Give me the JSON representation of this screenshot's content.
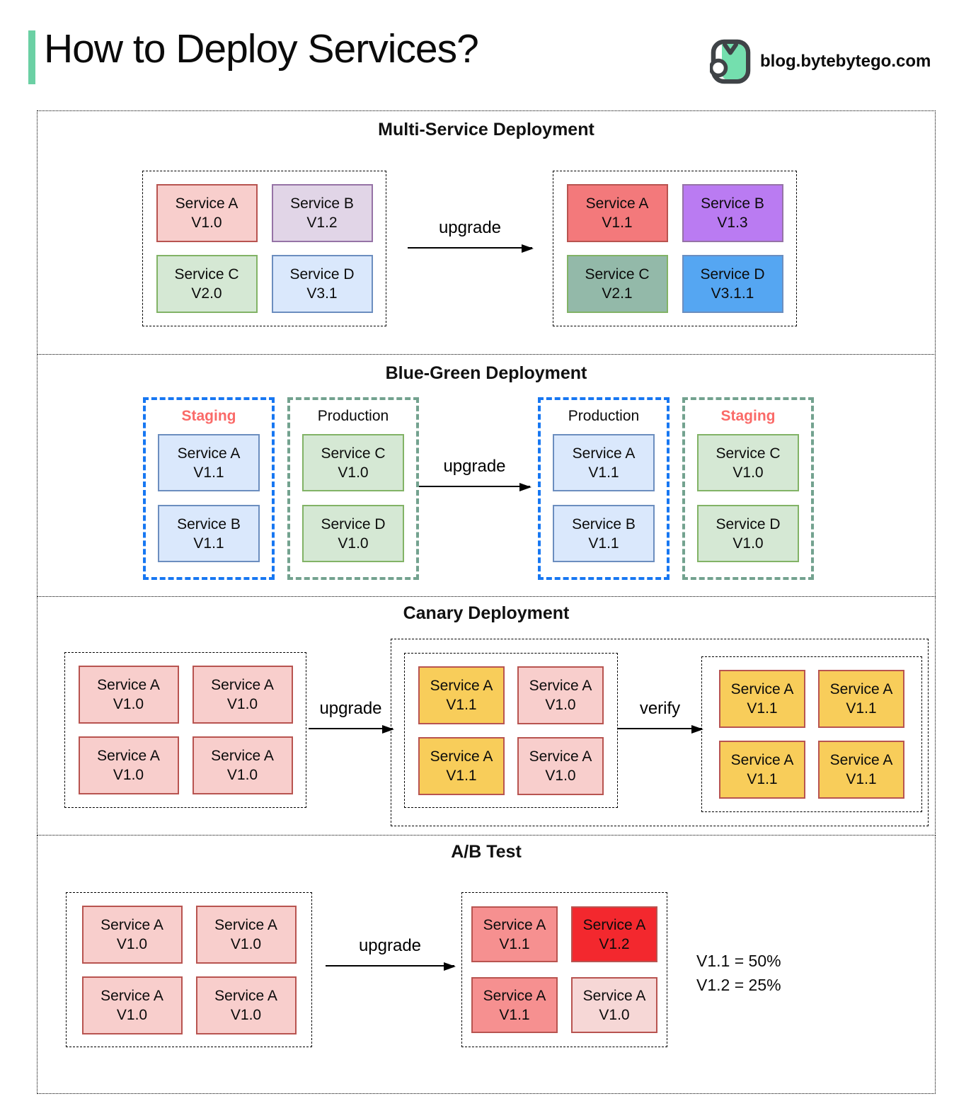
{
  "header": {
    "title": "How to Deploy Services?",
    "brand": "blog.bytebytego.com",
    "accent_color": "#6bd0a4",
    "logo_green": "#74dfae",
    "logo_outline": "#3f4347"
  },
  "multi": {
    "title": "Multi-Service Deployment",
    "arrow_label": "upgrade",
    "before": [
      {
        "label": "Service A",
        "version": "V1.0",
        "fill": "#f8cecc",
        "border": "#b85450"
      },
      {
        "label": "Service B",
        "version": "V1.2",
        "fill": "#e1d5e7",
        "border": "#9673a6"
      },
      {
        "label": "Service C",
        "version": "V2.0",
        "fill": "#d5e8d4",
        "border": "#82b366"
      },
      {
        "label": "Service D",
        "version": "V3.1",
        "fill": "#dae8fc",
        "border": "#6c8ebf"
      }
    ],
    "after": [
      {
        "label": "Service A",
        "version": "V1.1",
        "fill": "#f3797b",
        "border": "#b85450"
      },
      {
        "label": "Service B",
        "version": "V1.3",
        "fill": "#ba7bf2",
        "border": "#9673a6"
      },
      {
        "label": "Service C",
        "version": "V2.1",
        "fill": "#93b9a9",
        "border": "#82b366"
      },
      {
        "label": "Service D",
        "version": "V3.1.1",
        "fill": "#55a6f2",
        "border": "#6c8ebf"
      }
    ]
  },
  "bluegreen": {
    "title": "Blue-Green Deployment",
    "arrow_label": "upgrade",
    "staging_label": "Staging",
    "production_label": "Production",
    "staging_text_color": "#fa6a68",
    "blue_border": "#1777f2",
    "teal_border": "#73a28f",
    "left_staging": [
      {
        "label": "Service A",
        "version": "V1.1",
        "fill": "#dae8fc",
        "border": "#6c8ebf"
      },
      {
        "label": "Service B",
        "version": "V1.1",
        "fill": "#dae8fc",
        "border": "#6c8ebf"
      }
    ],
    "left_production": [
      {
        "label": "Service C",
        "version": "V1.0",
        "fill": "#d5e8d4",
        "border": "#82b366"
      },
      {
        "label": "Service D",
        "version": "V1.0",
        "fill": "#d5e8d4",
        "border": "#82b366"
      }
    ],
    "right_production": [
      {
        "label": "Service A",
        "version": "V1.1",
        "fill": "#dae8fc",
        "border": "#6c8ebf"
      },
      {
        "label": "Service B",
        "version": "V1.1",
        "fill": "#dae8fc",
        "border": "#6c8ebf"
      }
    ],
    "right_staging": [
      {
        "label": "Service C",
        "version": "V1.0",
        "fill": "#d5e8d4",
        "border": "#82b366"
      },
      {
        "label": "Service D",
        "version": "V1.0",
        "fill": "#d5e8d4",
        "border": "#82b366"
      }
    ]
  },
  "canary": {
    "title": "Canary Deployment",
    "upgrade_label": "upgrade",
    "verify_label": "verify",
    "initial": [
      {
        "label": "Service A",
        "version": "V1.0",
        "fill": "#f8cecc",
        "border": "#b85450"
      },
      {
        "label": "Service A",
        "version": "V1.0",
        "fill": "#f8cecc",
        "border": "#b85450"
      },
      {
        "label": "Service A",
        "version": "V1.0",
        "fill": "#f8cecc",
        "border": "#b85450"
      },
      {
        "label": "Service A",
        "version": "V1.0",
        "fill": "#f8cecc",
        "border": "#b85450"
      }
    ],
    "partial": [
      {
        "label": "Service A",
        "version": "V1.1",
        "fill": "#f8cd5a",
        "border": "#b85450"
      },
      {
        "label": "Service A",
        "version": "V1.0",
        "fill": "#f8cecc",
        "border": "#b85450"
      },
      {
        "label": "Service A",
        "version": "V1.1",
        "fill": "#f8cd5a",
        "border": "#b85450"
      },
      {
        "label": "Service A",
        "version": "V1.0",
        "fill": "#f8cecc",
        "border": "#b85450"
      }
    ],
    "full": [
      {
        "label": "Service A",
        "version": "V1.1",
        "fill": "#f8cd5a",
        "border": "#b85450"
      },
      {
        "label": "Service A",
        "version": "V1.1",
        "fill": "#f8cd5a",
        "border": "#b85450"
      },
      {
        "label": "Service A",
        "version": "V1.1",
        "fill": "#f8cd5a",
        "border": "#b85450"
      },
      {
        "label": "Service A",
        "version": "V1.1",
        "fill": "#f8cd5a",
        "border": "#b85450"
      }
    ]
  },
  "abtest": {
    "title": "A/B Test",
    "arrow_label": "upgrade",
    "before": [
      {
        "label": "Service A",
        "version": "V1.0",
        "fill": "#f8cecc",
        "border": "#b85450"
      },
      {
        "label": "Service A",
        "version": "V1.0",
        "fill": "#f8cecc",
        "border": "#b85450"
      },
      {
        "label": "Service A",
        "version": "V1.0",
        "fill": "#f8cecc",
        "border": "#b85450"
      },
      {
        "label": "Service A",
        "version": "V1.0",
        "fill": "#f8cecc",
        "border": "#b85450"
      }
    ],
    "after": [
      {
        "label": "Service A",
        "version": "V1.1",
        "fill": "#f69090",
        "border": "#b85450"
      },
      {
        "label": "Service A",
        "version": "V1.2",
        "fill": "#f3282e",
        "border": "#b85450"
      },
      {
        "label": "Service A",
        "version": "V1.1",
        "fill": "#f69090",
        "border": "#b85450"
      },
      {
        "label": "Service A",
        "version": "V1.0",
        "fill": "#f6d7d6",
        "border": "#b85450"
      }
    ],
    "notes": [
      "V1.1 = 50%",
      "V1.2 = 25%"
    ]
  }
}
